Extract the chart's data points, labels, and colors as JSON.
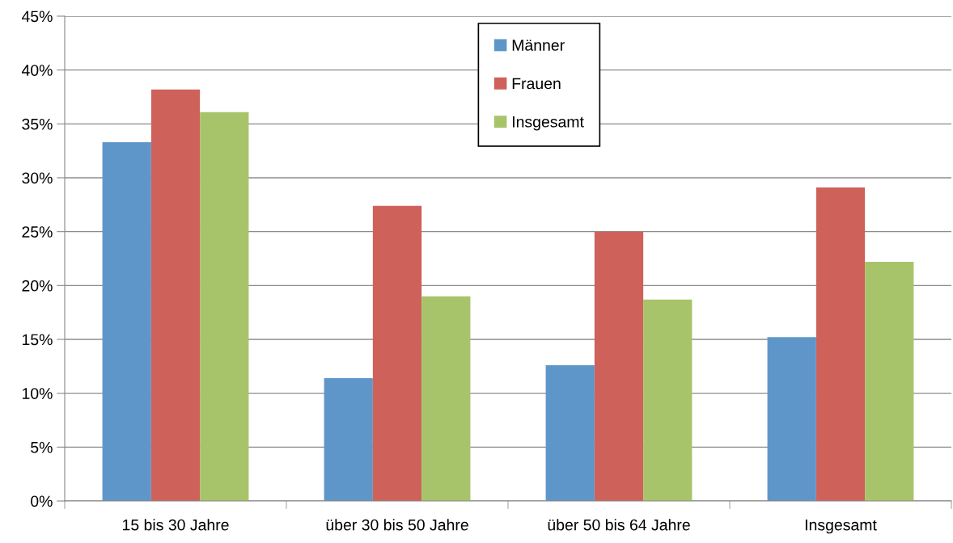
{
  "chart_data": {
    "type": "bar",
    "categories": [
      "15 bis 30 Jahre",
      "über 30 bis 50 Jahre",
      "über 50 bis 64 Jahre",
      "Insgesamt"
    ],
    "series": [
      {
        "name": "Männer",
        "color": "#5f96c9",
        "values": [
          33.3,
          11.4,
          12.6,
          15.2
        ]
      },
      {
        "name": "Frauen",
        "color": "#ce625b",
        "values": [
          38.2,
          27.4,
          25.0,
          29.1
        ]
      },
      {
        "name": "Insgesamt",
        "color": "#a8c46a",
        "values": [
          36.1,
          19.0,
          18.7,
          22.2
        ]
      }
    ],
    "ylim": [
      0,
      45
    ],
    "yticks": [
      {
        "value": 0,
        "label": "0%"
      },
      {
        "value": 5,
        "label": "5%"
      },
      {
        "value": 10,
        "label": "10%"
      },
      {
        "value": 15,
        "label": "15%"
      },
      {
        "value": 20,
        "label": "20%"
      },
      {
        "value": 25,
        "label": "25%"
      },
      {
        "value": 30,
        "label": "30%"
      },
      {
        "value": 35,
        "label": "35%"
      },
      {
        "value": 40,
        "label": "40%"
      },
      {
        "value": 45,
        "label": "45%"
      }
    ],
    "grid": "y",
    "legend": "top"
  }
}
